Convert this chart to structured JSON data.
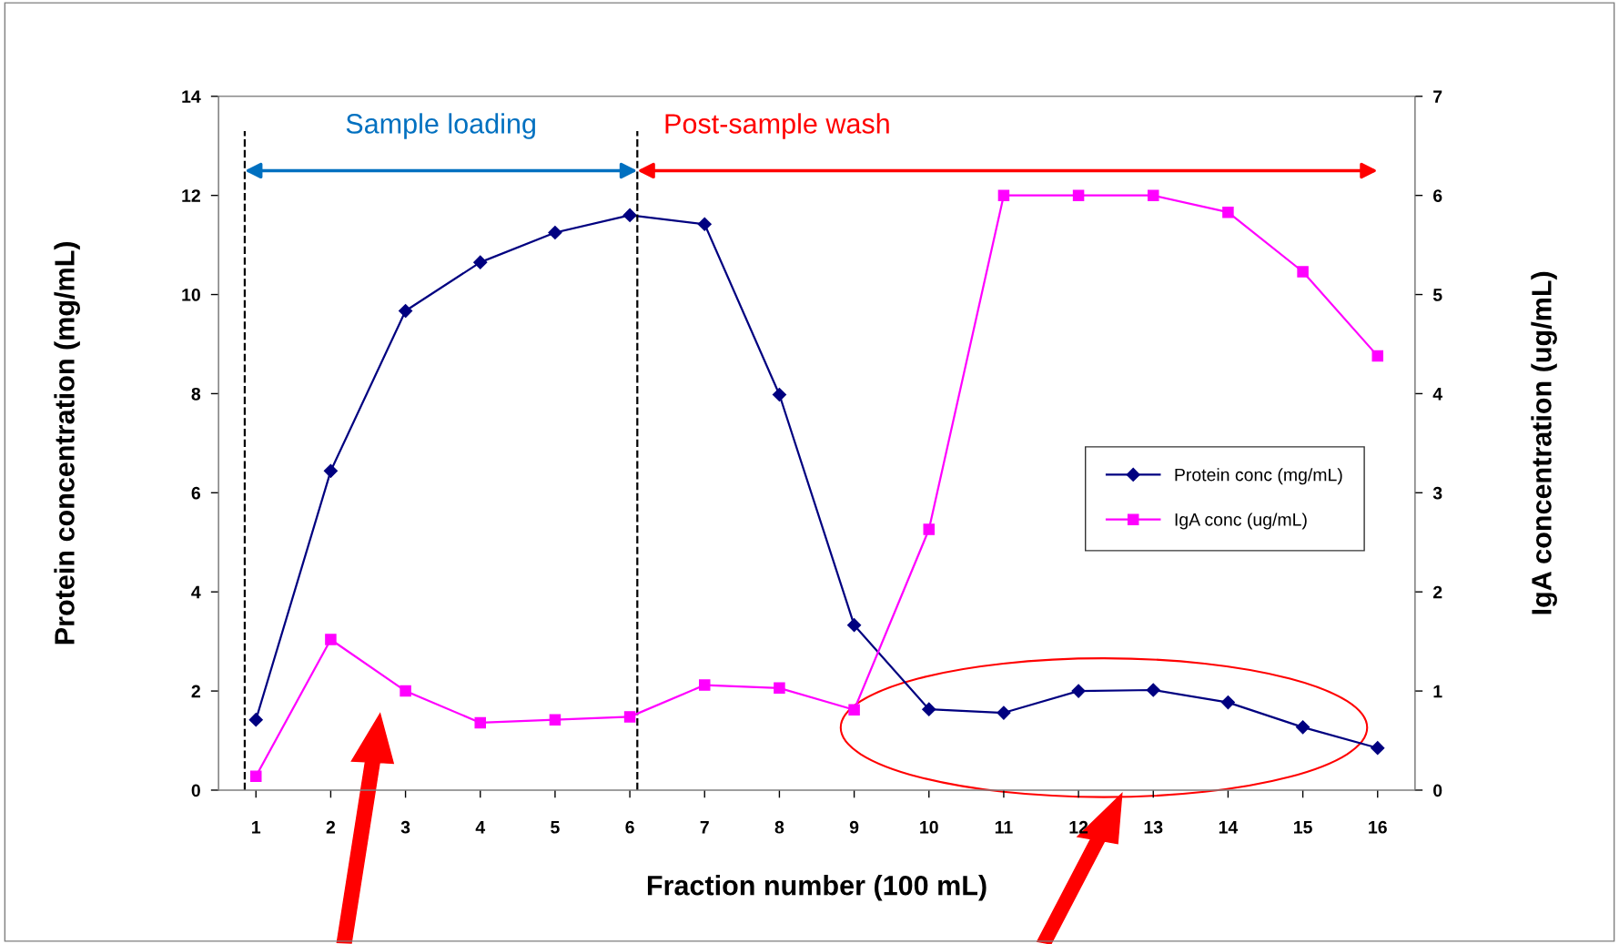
{
  "chart_data": {
    "type": "line",
    "xlabel": "Fraction number (100 mL)",
    "ylabel": "Protein concentration (mg/mL)",
    "y2label": "IgA concentration (ug/mL)",
    "x": [
      1,
      2,
      3,
      4,
      5,
      6,
      7,
      8,
      9,
      10,
      11,
      12,
      13,
      14,
      15,
      16
    ],
    "xlim": [
      0.5,
      16.5
    ],
    "xticks": [
      1,
      2,
      3,
      4,
      5,
      6,
      7,
      8,
      9,
      10,
      11,
      12,
      13,
      14,
      15,
      16
    ],
    "ylim": [
      0,
      14
    ],
    "yticks": [
      0,
      2,
      4,
      6,
      8,
      10,
      12,
      14
    ],
    "y2lim": [
      0,
      7
    ],
    "y2ticks": [
      0,
      1,
      2,
      3,
      4,
      5,
      6,
      7
    ],
    "series": [
      {
        "name": "Protein conc (mg/mL)",
        "color": "#000080",
        "marker": "diamond",
        "values": [
          1.42,
          6.44,
          9.67,
          10.65,
          11.25,
          11.6,
          11.42,
          7.98,
          3.33,
          1.63,
          1.56,
          2.0,
          2.02,
          1.77,
          1.27,
          0.85
        ]
      },
      {
        "name": "IgA conc (ug/mL)",
        "color": "#ff00ff",
        "marker": "square",
        "axis": "y2",
        "values": [
          0.14,
          1.52,
          1.0,
          0.68,
          0.71,
          0.74,
          1.06,
          1.03,
          0.81,
          2.63,
          6.0,
          6.0,
          6.0,
          5.83,
          5.23,
          4.38
        ]
      }
    ],
    "ref_lines": [
      {
        "axis": "x",
        "value": 0.85,
        "color": "#000000",
        "line_style": "dashed"
      },
      {
        "axis": "x",
        "value": 6.1,
        "color": "#000000",
        "line_style": "dashed"
      }
    ],
    "annotations": [
      "Sample loading",
      "Post-sample wash"
    ],
    "grid": false,
    "legend": "right",
    "line_style": "solid"
  }
}
